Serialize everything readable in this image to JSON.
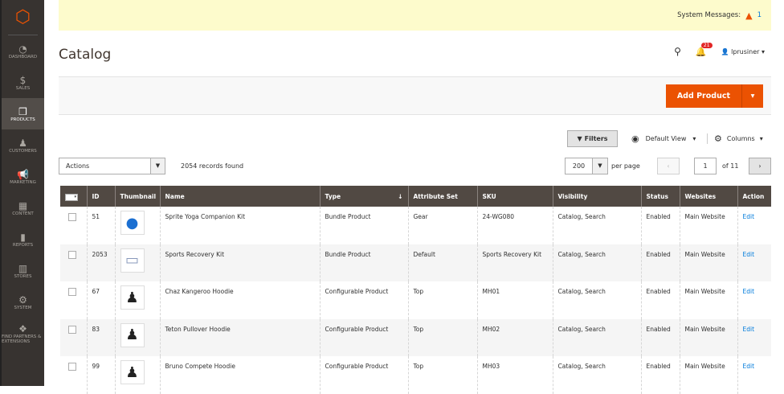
{
  "sidebar": {
    "items": [
      {
        "label": "Dashboard",
        "icon": "dashboard-icon",
        "glyph": "◔"
      },
      {
        "label": "Sales",
        "icon": "dollar-icon",
        "glyph": "$"
      },
      {
        "label": "Products",
        "icon": "box-icon",
        "glyph": "❒",
        "active": true
      },
      {
        "label": "Customers",
        "icon": "person-icon",
        "glyph": "♟"
      },
      {
        "label": "Marketing",
        "icon": "megaphone-icon",
        "glyph": "📢"
      },
      {
        "label": "Content",
        "icon": "layout-icon",
        "glyph": "▦"
      },
      {
        "label": "Reports",
        "icon": "bar-chart-icon",
        "glyph": "▮"
      },
      {
        "label": "Stores",
        "icon": "store-icon",
        "glyph": "▥"
      },
      {
        "label": "System",
        "icon": "gear-icon",
        "glyph": "⚙"
      },
      {
        "label": "Find Partners & Extensions",
        "icon": "extensions-icon",
        "glyph": "❖"
      }
    ]
  },
  "system_messages": {
    "label": "System Messages:",
    "count": "1"
  },
  "page_title": "Catalog",
  "header": {
    "notifications": "21",
    "user": "lprusiner"
  },
  "add_product": "Add Product",
  "toolbar": {
    "filters": "Filters",
    "view": "Default View",
    "columns": "Columns",
    "actions": "Actions",
    "records": "2054 records found",
    "per_page": "200",
    "per_page_label": "per page",
    "page": "1",
    "of": "of 11"
  },
  "columns": [
    "",
    "ID",
    "Thumbnail",
    "Name",
    "Type",
    "Attribute Set",
    "SKU",
    "Visibility",
    "Status",
    "Websites",
    "Action"
  ],
  "rows": [
    {
      "id": "51",
      "thumb": "●",
      "name": "Sprite Yoga Companion Kit",
      "type": "Bundle Product",
      "set": "Gear",
      "sku": "24-WG080",
      "vis": "Catalog, Search",
      "status": "Enabled",
      "web": "Main Website",
      "action": "Edit"
    },
    {
      "id": "2053",
      "thumb": "▭",
      "name": "Sports Recovery Kit",
      "type": "Bundle Product",
      "set": "Default",
      "sku": "Sports Recovery Kit",
      "vis": "Catalog, Search",
      "status": "Enabled",
      "web": "Main Website",
      "action": "Edit"
    },
    {
      "id": "67",
      "thumb": "♟",
      "name": "Chaz Kangeroo Hoodie",
      "type": "Configurable Product",
      "set": "Top",
      "sku": "MH01",
      "vis": "Catalog, Search",
      "status": "Enabled",
      "web": "Main Website",
      "action": "Edit"
    },
    {
      "id": "83",
      "thumb": "♟",
      "name": "Teton Pullover Hoodie",
      "type": "Configurable Product",
      "set": "Top",
      "sku": "MH02",
      "vis": "Catalog, Search",
      "status": "Enabled",
      "web": "Main Website",
      "action": "Edit"
    },
    {
      "id": "99",
      "thumb": "♟",
      "name": "Bruno Compete Hoodie",
      "type": "Configurable Product",
      "set": "Top",
      "sku": "MH03",
      "vis": "Catalog, Search",
      "status": "Enabled",
      "web": "Main Website",
      "action": "Edit"
    }
  ]
}
